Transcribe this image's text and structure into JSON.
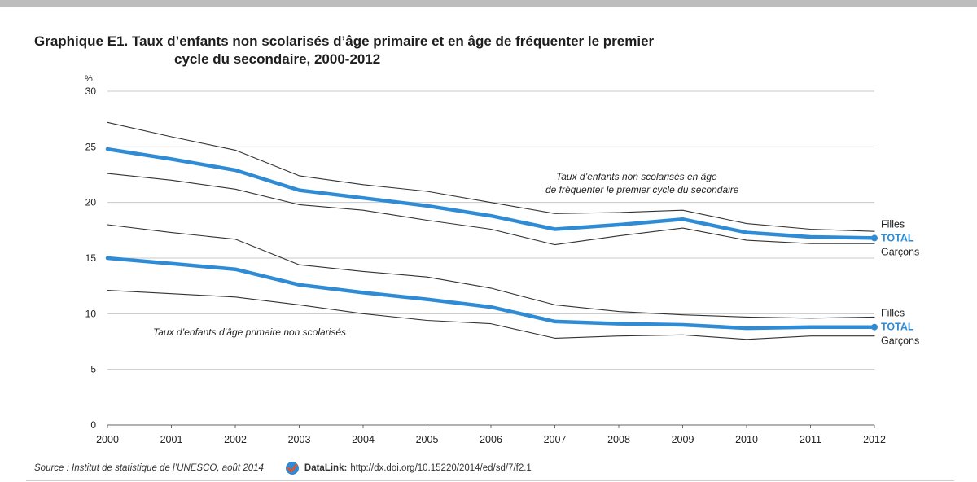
{
  "title": {
    "line1": "Graphique E1. Taux d’enfants non scolarisés d’âge primaire et en âge de fréquenter le premier",
    "line2": "cycle du secondaire, 2000-2012"
  },
  "source": {
    "text": "Source : Institut de statistique de l’UNESCO, août 2014",
    "datalink_label": "DataLink:",
    "datalink_url": "http://dx.doi.org/10.15220/2014/ed/sd/7/f2.1"
  },
  "colors": {
    "total": "#2f8bd3",
    "gender": "#333333",
    "grid": "#c8c8c8",
    "axis": "#666666"
  },
  "chart_data": {
    "type": "line",
    "ylabel": "%",
    "ylim": [
      0,
      30
    ],
    "yticks": [
      0,
      5,
      10,
      15,
      20,
      25,
      30
    ],
    "grid": true,
    "x": [
      2000,
      2001,
      2002,
      2003,
      2004,
      2005,
      2006,
      2007,
      2008,
      2009,
      2010,
      2011,
      2012
    ],
    "groups": [
      {
        "annotation": "Taux d’enfants non scolarisés en âge de fréquenter le premier cycle du secondaire",
        "series": [
          {
            "name": "Filles",
            "role": "filles",
            "values": [
              27.2,
              25.9,
              24.7,
              22.4,
              21.6,
              21.0,
              20.0,
              19.0,
              19.1,
              19.3,
              18.1,
              17.6,
              17.4
            ]
          },
          {
            "name": "TOTAL",
            "role": "total",
            "values": [
              24.8,
              23.9,
              22.9,
              21.1,
              20.4,
              19.7,
              18.8,
              17.6,
              18.0,
              18.5,
              17.3,
              16.9,
              16.8
            ]
          },
          {
            "name": "Garçons",
            "role": "garcons",
            "values": [
              22.6,
              22.0,
              21.2,
              19.8,
              19.3,
              18.4,
              17.6,
              16.2,
              17.0,
              17.7,
              16.6,
              16.3,
              16.3
            ]
          }
        ]
      },
      {
        "annotation": "Taux d’enfants d’âge primaire non scolarisés",
        "series": [
          {
            "name": "Filles",
            "role": "filles",
            "values": [
              18.0,
              17.3,
              16.7,
              14.4,
              13.8,
              13.3,
              12.3,
              10.8,
              10.2,
              9.9,
              9.7,
              9.6,
              9.7
            ]
          },
          {
            "name": "TOTAL",
            "role": "total",
            "values": [
              15.0,
              14.5,
              14.0,
              12.6,
              11.9,
              11.3,
              10.6,
              9.3,
              9.1,
              9.0,
              8.7,
              8.8,
              8.8
            ]
          },
          {
            "name": "Garçons",
            "role": "garcons",
            "values": [
              12.1,
              11.8,
              11.5,
              10.8,
              10.0,
              9.4,
              9.1,
              7.8,
              8.0,
              8.1,
              7.7,
              8.0,
              8.0
            ]
          }
        ]
      }
    ]
  }
}
